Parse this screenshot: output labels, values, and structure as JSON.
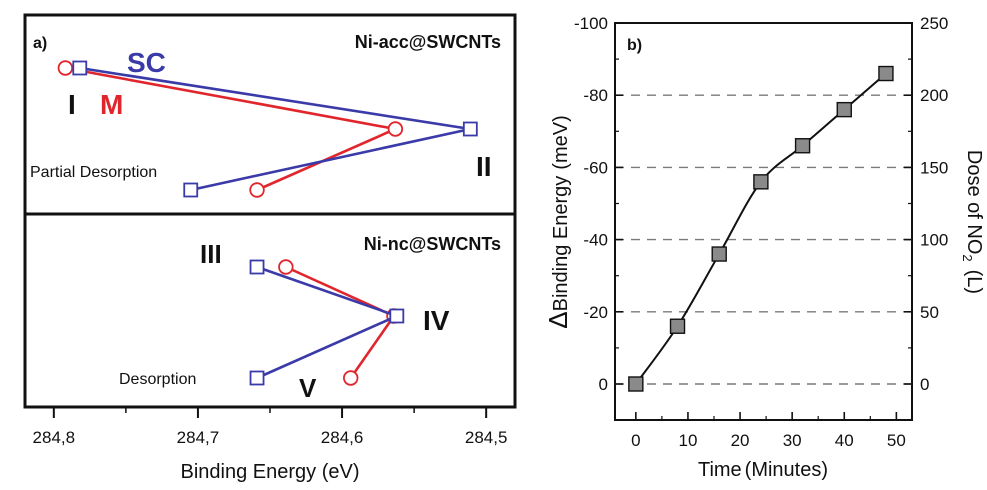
{
  "colors": {
    "sc": "#3a3aa8",
    "m": "#e0262c",
    "axis": "#111111",
    "grid": "#7a7a7a",
    "marker_fill": "#8a8a8a"
  },
  "panel_a": {
    "label": "a)",
    "top_title": "Ni-acc@SWCNTs",
    "bottom_title": "Ni-nc@SWCNTs",
    "legend_sc": "SC",
    "legend_m": "M",
    "roman": [
      "I",
      "II",
      "III",
      "IV",
      "V"
    ],
    "partial_desorption": "Partial Desorption",
    "desorption": "Desorption",
    "xlabel": "Binding Energy (eV)",
    "xticks": [
      "284,8",
      "284,7",
      "284,6",
      "284,5"
    ]
  },
  "panel_b": {
    "label": "b)",
    "xlabel_time": "Time",
    "xlabel_unit": "(Minutes)",
    "ylabel_delta": "Δ",
    "ylabel_main": "Binding Energy",
    "ylabel_unit": "(meV)",
    "y2label_a": "Dose of NO",
    "y2label_sub": "2",
    "y2label_unit": "(L)",
    "xticks": [
      "0",
      "10",
      "20",
      "30",
      "40",
      "50"
    ],
    "yticks": [
      "-100",
      "-80",
      "-60",
      "-40",
      "-20",
      "0"
    ],
    "y2ticks": [
      "250",
      "200",
      "150",
      "100",
      "50",
      "0"
    ]
  },
  "chart_data": [
    {
      "type": "line",
      "panel": "a (top)",
      "title": "Ni-acc@SWCNTs",
      "xlabel": "Binding Energy (eV)",
      "xlim": [
        284.82,
        284.48
      ],
      "x_reversed": true,
      "series": [
        {
          "name": "SC",
          "x": [
            284.782,
            284.511,
            284.705
          ],
          "labels": [
            "I",
            "II",
            "Partial Desorption"
          ]
        },
        {
          "name": "M",
          "x": [
            284.792,
            284.563,
            284.659
          ],
          "labels": [
            "I",
            "II",
            "Partial Desorption"
          ]
        }
      ]
    },
    {
      "type": "line",
      "panel": "a (bottom)",
      "title": "Ni-nc@SWCNTs",
      "xlabel": "Binding Energy (eV)",
      "xlim": [
        284.82,
        284.48
      ],
      "x_reversed": true,
      "series": [
        {
          "name": "SC",
          "x": [
            284.659,
            284.562,
            284.659
          ],
          "labels": [
            "III",
            "IV",
            "Desorption"
          ]
        },
        {
          "name": "M",
          "x": [
            284.639,
            284.564,
            284.594
          ],
          "labels": [
            "III",
            "IV",
            "V"
          ]
        }
      ]
    },
    {
      "type": "line",
      "panel": "b",
      "xlabel": "Time (Minutes)",
      "ylabel": "ΔBinding Energy (meV)",
      "y2label": "Dose of NO2 (L)",
      "xlim": [
        -4,
        53
      ],
      "ylim": [
        0,
        -100
      ],
      "y2lim": [
        0,
        250
      ],
      "grid": "horizontal dashed",
      "x": [
        0,
        8,
        16,
        24,
        32,
        40,
        48
      ],
      "y": [
        0,
        -16,
        -36,
        -56,
        -66,
        -76,
        -86
      ]
    }
  ]
}
